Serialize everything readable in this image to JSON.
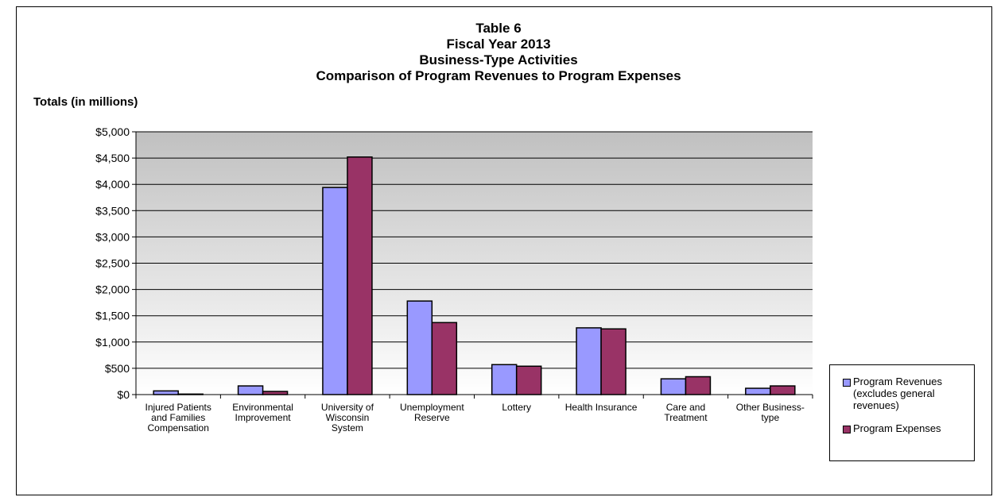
{
  "chart_data": {
    "type": "bar",
    "title_lines": [
      "Table 6",
      "Fiscal Year 2013",
      "Business-Type Activities",
      "Comparison of Program Revenues to Program Expenses"
    ],
    "ylabel": "Totals (in millions)",
    "xlabel": "",
    "ylim": [
      0,
      5000
    ],
    "yticks": [
      0,
      500,
      1000,
      1500,
      2000,
      2500,
      3000,
      3500,
      4000,
      4500,
      5000
    ],
    "ytick_labels": [
      "$0",
      "$500",
      "$1,000",
      "$1,500",
      "$2,000",
      "$2,500",
      "$3,000",
      "$3,500",
      "$4,000",
      "$4,500",
      "$5,000"
    ],
    "grid": true,
    "legend_position": "bottom-right",
    "categories": [
      [
        "Injured Patients",
        "and Families",
        "Compensation"
      ],
      [
        "Environmental",
        "Improvement"
      ],
      [
        "University of",
        "Wisconsin",
        "System"
      ],
      [
        "Unemployment",
        "Reserve"
      ],
      [
        "Lottery"
      ],
      [
        "Health Insurance"
      ],
      [
        "Care and",
        "Treatment"
      ],
      [
        "Other Business-",
        "type"
      ]
    ],
    "series": [
      {
        "name": "Program Revenues (excludes general revenues)",
        "name_lines": [
          "Program Revenues",
          "(excludes general",
          "revenues)"
        ],
        "color": "#9999ff",
        "values": [
          70,
          165,
          3940,
          1780,
          570,
          1270,
          300,
          120
        ]
      },
      {
        "name": "Program Expenses",
        "name_lines": [
          "Program Expenses"
        ],
        "color": "#993366",
        "values": [
          10,
          60,
          4520,
          1370,
          540,
          1250,
          340,
          165
        ]
      }
    ],
    "plot_background_top": "#c0c0c0",
    "plot_background_bottom": "#ffffff"
  }
}
